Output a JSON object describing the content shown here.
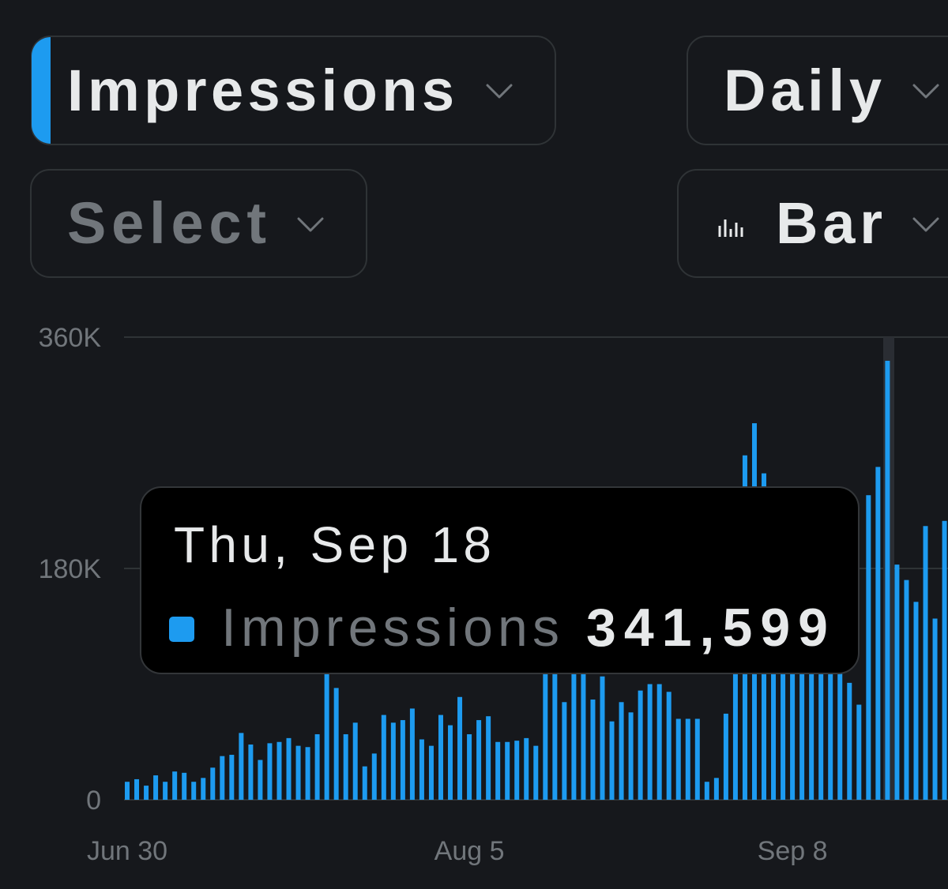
{
  "controls": {
    "metric": "Impressions",
    "period": "Daily",
    "compare": "Select",
    "chart_style": "Bar"
  },
  "chart_data": {
    "type": "bar",
    "categories": [
      "Jun 30",
      null,
      null,
      null,
      null,
      null,
      null,
      null,
      null,
      null,
      null,
      null,
      null,
      null,
      null,
      null,
      null,
      null,
      null,
      null,
      null,
      null,
      null,
      null,
      null,
      null,
      null,
      null,
      null,
      null,
      null,
      null,
      null,
      null,
      null,
      null,
      "Aug 5",
      null,
      null,
      null,
      null,
      null,
      null,
      null,
      null,
      null,
      null,
      null,
      null,
      null,
      null,
      null,
      null,
      null,
      null,
      null,
      null,
      null,
      null,
      null,
      null,
      null,
      null,
      null,
      null,
      null,
      null,
      null,
      null,
      null,
      "Sep 8",
      null,
      null,
      null,
      null,
      null,
      null,
      null,
      null,
      null,
      null,
      null,
      null,
      null,
      null,
      null,
      null
    ],
    "series": [
      {
        "name": "Impressions",
        "color": "#1d9bf0",
        "values": [
          14000,
          16000,
          11000,
          19000,
          14000,
          22000,
          21000,
          14000,
          17000,
          25000,
          34000,
          35000,
          52000,
          43000,
          31000,
          44000,
          45000,
          48000,
          42000,
          41000,
          51000,
          110000,
          87000,
          51000,
          60000,
          26000,
          36000,
          66000,
          60000,
          62000,
          71000,
          47000,
          42000,
          66000,
          58000,
          80000,
          51000,
          62000,
          65000,
          45000,
          45000,
          46000,
          48000,
          42000,
          120000,
          115000,
          76000,
          105000,
          100000,
          78000,
          96000,
          61000,
          76000,
          68000,
          85000,
          90000,
          90000,
          84000,
          63000,
          63000,
          63000,
          14000,
          17000,
          67000,
          130000,
          268000,
          293000,
          254000,
          150000,
          150000,
          140000,
          135000,
          130000,
          125000,
          120000,
          100000,
          91000,
          74000,
          237000,
          259000,
          341599,
          183000,
          171000,
          154000,
          213000,
          141000,
          217000
        ]
      }
    ],
    "ylim": [
      0,
      360000
    ],
    "yticks": [
      0,
      {
        "value": 180000,
        "label": "180K"
      },
      {
        "value": 360000,
        "label": "360K"
      }
    ],
    "grid": true,
    "tooltip": {
      "title": "Thu, Sep 18",
      "value_label": "341,599"
    }
  }
}
